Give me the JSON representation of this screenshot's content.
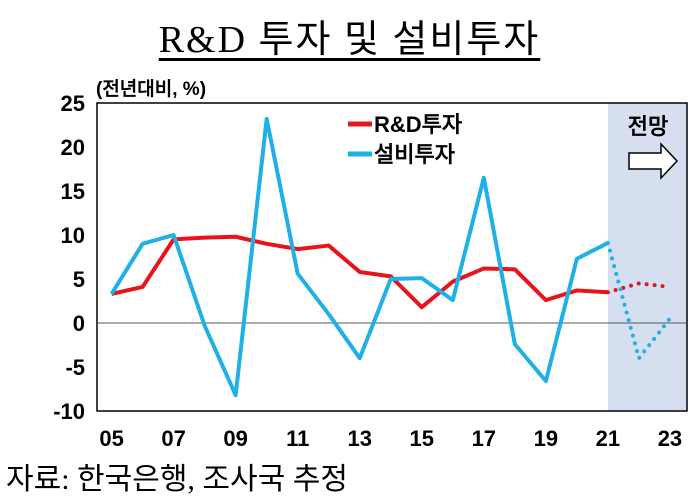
{
  "title": "R&D 투자 및 설비투자",
  "unit_label": "(전년대비, %)",
  "source": "자료: 한국은행, 조사국 추정",
  "chart_data": {
    "type": "line",
    "title": "R&D 투자 및 설비투자",
    "ylabel": "(전년대비, %)",
    "xlabel": "",
    "x": [
      "05",
      "06",
      "07",
      "08",
      "09",
      "10",
      "11",
      "12",
      "13",
      "14",
      "15",
      "16",
      "17",
      "18",
      "19",
      "20",
      "21",
      "22",
      "23"
    ],
    "x_tick_labels": [
      "05",
      "07",
      "09",
      "11",
      "13",
      "15",
      "17",
      "19",
      "21",
      "23"
    ],
    "y_ticks": [
      25,
      20,
      15,
      10,
      5,
      0,
      -5,
      -10
    ],
    "ylim": [
      -10,
      25
    ],
    "forecast_from": "21",
    "forecast_label": "전망",
    "series": [
      {
        "name": "R&D투자",
        "color": "#e8141b",
        "values": [
          3.3,
          4.1,
          9.5,
          9.7,
          9.8,
          9.0,
          8.4,
          8.8,
          5.8,
          5.3,
          1.8,
          4.7,
          6.2,
          6.1,
          2.6,
          3.7,
          3.5,
          4.5,
          4.1
        ]
      },
      {
        "name": "설비투자",
        "color": "#1fb0e6",
        "values": [
          3.3,
          9.0,
          10.0,
          -0.3,
          -8.2,
          23.2,
          5.6,
          1.0,
          -4.0,
          5.0,
          5.1,
          2.6,
          16.5,
          -2.4,
          -6.6,
          7.3,
          9.1,
          -4.0,
          0.5
        ]
      }
    ],
    "legend": "top-center",
    "grid": false
  }
}
